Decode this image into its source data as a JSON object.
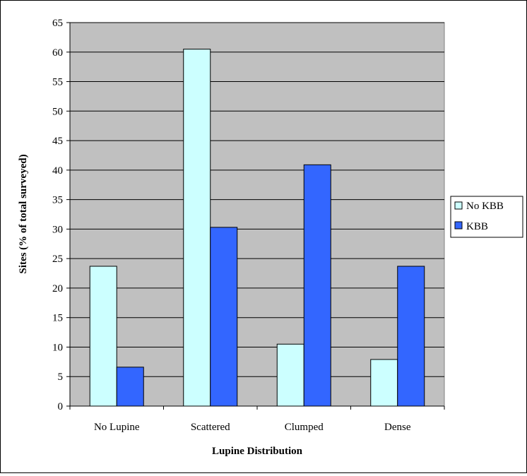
{
  "chart_data": {
    "type": "bar",
    "title": "",
    "xlabel": "Lupine Distribution",
    "ylabel": "Sites (% of total surveyed)",
    "categories": [
      "No Lupine",
      "Scattered",
      "Clumped",
      "Dense"
    ],
    "series": [
      {
        "name": "No KBB",
        "values": [
          23.7,
          60.5,
          10.5,
          7.9
        ]
      },
      {
        "name": "KBB",
        "values": [
          6.6,
          30.3,
          40.9,
          23.7
        ]
      }
    ],
    "ylim": [
      0,
      65
    ],
    "yticks": [
      0,
      5,
      10,
      15,
      20,
      25,
      30,
      35,
      40,
      45,
      50,
      55,
      60,
      65
    ],
    "grid": true,
    "legend_position": "right",
    "colors": {
      "No KBB": "#ccffff",
      "KBB": "#3366ff",
      "plot_background": "#c0c0c0"
    }
  }
}
